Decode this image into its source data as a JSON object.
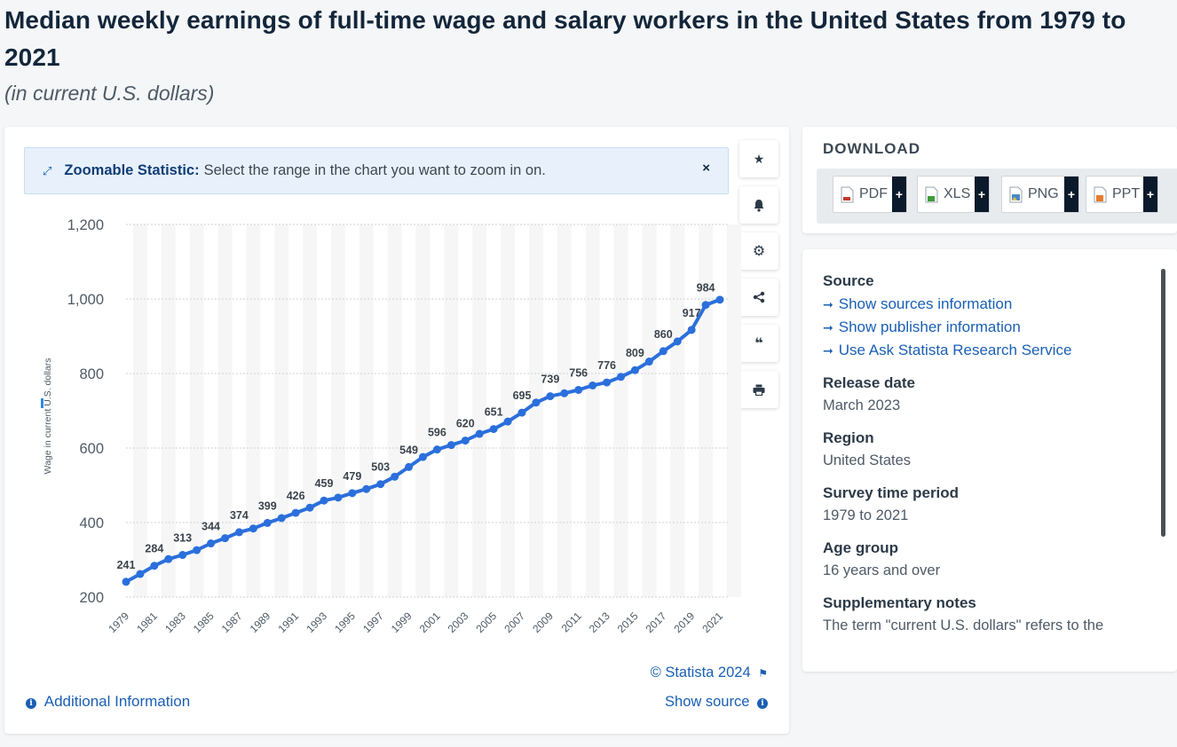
{
  "header": {
    "title": "Median weekly earnings of full-time wage and salary workers in the United States from 1979 to 2021",
    "subtitle": "(in current U.S. dollars)"
  },
  "zoom_banner": {
    "icon": "expand-arrows-icon",
    "label": "Zoomable Statistic:",
    "text": "Select the range in the chart you want to zoom in on.",
    "close": "×"
  },
  "tools": [
    {
      "name": "star-icon",
      "glyph": "★"
    },
    {
      "name": "bell-icon",
      "glyph": "🔔"
    },
    {
      "name": "gear-icon",
      "glyph": "⚙"
    },
    {
      "name": "share-icon",
      "glyph": "⋖"
    },
    {
      "name": "quote-icon",
      "glyph": "❝"
    },
    {
      "name": "print-icon",
      "glyph": "⎙"
    }
  ],
  "chart_data": {
    "type": "line",
    "title": "Median weekly earnings of full-time wage and salary workers in the United States from 1979 to 2021",
    "xlabel": "",
    "ylabel": "Wage in current U.S. dollars",
    "ylim": [
      200,
      1200
    ],
    "yticks": [
      200,
      400,
      600,
      800,
      1000,
      1200
    ],
    "ytick_labels": [
      "200",
      "400",
      "600",
      "800",
      "1,000",
      "1,200"
    ],
    "x": [
      1979,
      1980,
      1981,
      1982,
      1983,
      1984,
      1985,
      1986,
      1987,
      1988,
      1989,
      1990,
      1991,
      1992,
      1993,
      1994,
      1995,
      1996,
      1997,
      1998,
      1999,
      2000,
      2001,
      2002,
      2003,
      2004,
      2005,
      2006,
      2007,
      2008,
      2009,
      2010,
      2011,
      2012,
      2013,
      2014,
      2015,
      2016,
      2017,
      2018,
      2019,
      2020,
      2021
    ],
    "xtick_labels": [
      "1979",
      "1981",
      "1983",
      "1985",
      "1987",
      "1989",
      "1991",
      "1993",
      "1995",
      "1997",
      "1999",
      "2001",
      "2003",
      "2005",
      "2007",
      "2009",
      "2011",
      "2013",
      "2015",
      "2017",
      "2019",
      "2021"
    ],
    "values": [
      241,
      262,
      284,
      302,
      313,
      326,
      344,
      358,
      374,
      384,
      399,
      412,
      426,
      440,
      459,
      467,
      479,
      490,
      503,
      523,
      549,
      576,
      596,
      608,
      620,
      638,
      651,
      671,
      695,
      722,
      739,
      747,
      756,
      768,
      776,
      791,
      809,
      832,
      860,
      886,
      917,
      984,
      998
    ],
    "labeled_points": {
      "1979": "241",
      "1981": "284",
      "1983": "313",
      "1985": "344",
      "1987": "374",
      "1989": "399",
      "1991": "426",
      "1993": "459",
      "1995": "479",
      "1997": "503",
      "1999": "549",
      "2001": "596",
      "2003": "620",
      "2005": "651",
      "2007": "695",
      "2009": "739",
      "2011": "756",
      "2013": "776",
      "2015": "809",
      "2017": "860",
      "2019": "917",
      "2020": "984"
    },
    "grid": true,
    "line_color": "#2b6fdc"
  },
  "footer": {
    "credit": "© Statista 2024",
    "additional_info": "Additional Information",
    "show_source": "Show source"
  },
  "download": {
    "title": "DOWNLOAD",
    "buttons": [
      {
        "label": "PDF",
        "color": "#c0392b"
      },
      {
        "label": "XLS",
        "color": "#3f9b3a"
      },
      {
        "label": "PNG",
        "color": "#4a88c8"
      },
      {
        "label": "PPT",
        "color": "#e87b2c"
      }
    ],
    "plus": "+"
  },
  "details": {
    "source_heading": "Source",
    "links": [
      "Show sources information",
      "Show publisher information",
      "Use Ask Statista Research Service"
    ],
    "release_heading": "Release date",
    "release_value": "March 2023",
    "region_heading": "Region",
    "region_value": "United States",
    "period_heading": "Survey time period",
    "period_value": "1979 to 2021",
    "age_heading": "Age group",
    "age_value": "16 years and over",
    "notes_heading": "Supplementary notes",
    "notes_value": "The term \"current U.S. dollars\" refers to the"
  }
}
